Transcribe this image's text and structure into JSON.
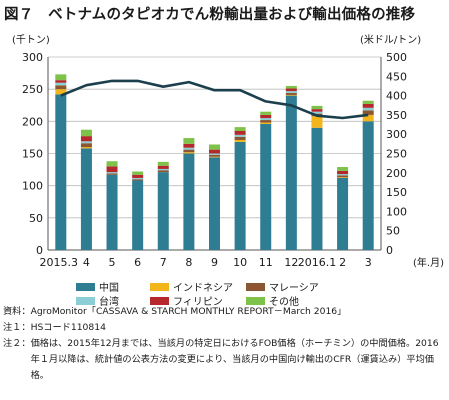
{
  "title": "図７　ベトナムのタピオカでん粉輸出量および輸出価格の推移",
  "chart_data": {
    "type": "bar",
    "stacked": true,
    "left_unit": "(千トン)",
    "right_unit": "(米ドル/トン)",
    "x_unit": "(年.月)",
    "left_ticks": [
      "0",
      "50",
      "100",
      "150",
      "200",
      "250",
      "300"
    ],
    "right_ticks": [
      "0",
      "50",
      "100",
      "150",
      "200",
      "250",
      "300",
      "350",
      "400",
      "450",
      "500"
    ],
    "ylim_left": [
      0,
      300
    ],
    "ylim_right": [
      0,
      500
    ],
    "categories": [
      "2015.3",
      "4",
      "5",
      "6",
      "7",
      "8",
      "9",
      "10",
      "11",
      "12",
      "2016.1",
      "2",
      "3"
    ],
    "series": [
      {
        "name": "中国",
        "color": "#2e7d93",
        "values": [
          242,
          158,
          117,
          108,
          121,
          150,
          144,
          168,
          196,
          240,
          190,
          112,
          200
        ]
      },
      {
        "name": "インドネシア",
        "color": "#f2b51b",
        "values": [
          8,
          2,
          0,
          0,
          0,
          2,
          1,
          3,
          2,
          1,
          18,
          1,
          10
        ]
      },
      {
        "name": "マレーシア",
        "color": "#8a5730",
        "values": [
          6,
          6,
          2,
          2,
          3,
          4,
          3,
          5,
          4,
          3,
          4,
          3,
          7
        ]
      },
      {
        "name": "台湾",
        "color": "#8cced6",
        "values": [
          4,
          3,
          2,
          2,
          2,
          3,
          2,
          3,
          3,
          3,
          3,
          2,
          4
        ]
      },
      {
        "name": "フィリピン",
        "color": "#b5282c",
        "values": [
          4,
          8,
          9,
          5,
          5,
          6,
          6,
          6,
          5,
          4,
          4,
          5,
          6
        ]
      },
      {
        "name": "その他",
        "color": "#7fc24a",
        "values": [
          9,
          10,
          8,
          5,
          6,
          9,
          8,
          6,
          5,
          4,
          5,
          6,
          5
        ]
      }
    ],
    "price_line": {
      "color": "#1c3f4e",
      "values": [
        400,
        427,
        438,
        438,
        423,
        435,
        414,
        414,
        385,
        375,
        348,
        342,
        350
      ]
    },
    "grid": true
  },
  "notes": [
    {
      "label": "資料：",
      "text": "AgroMonitor「CASSAVA & STARCH MONTHLY REPORT－March 2016」"
    },
    {
      "label": "注１：",
      "text": "HSコード110814"
    },
    {
      "label": "注２：",
      "text": "価格は、2015年12月までは、当該月の特定日におけるFOB価格（ホーチミン）の中間価格。2016年１月以降は、統計値の公表方法の変更により、当該月の中国向け輸出のCFR（運賃込み）平均価格。"
    }
  ]
}
